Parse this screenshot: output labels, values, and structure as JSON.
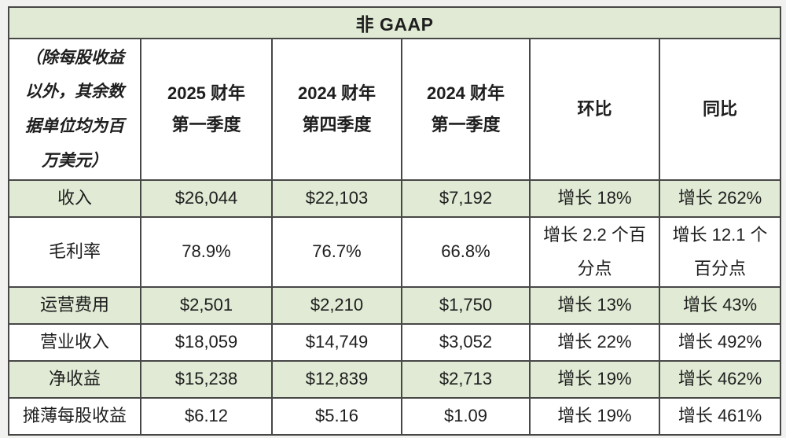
{
  "title": "非 GAAP",
  "note": "（除每股收益以外，其余数据单位均为百万美元）",
  "columns": [
    {
      "line1": "2025 财年",
      "line2": "第一季度"
    },
    {
      "line1": "2024 财年",
      "line2": "第四季度"
    },
    {
      "line1": "2024 财年",
      "line2": "第一季度"
    },
    {
      "label": "环比"
    },
    {
      "label": "同比"
    }
  ],
  "rows": [
    {
      "label": "收入",
      "values": [
        "$26,044",
        "$22,103",
        "$7,192",
        "增长 18%",
        "增长 262%"
      ],
      "shaded": true,
      "tall": false
    },
    {
      "label": "毛利率",
      "values": [
        "78.9%",
        "76.7%",
        "66.8%",
        "增长 2.2 个百分点",
        "增长 12.1 个百分点"
      ],
      "shaded": false,
      "tall": true
    },
    {
      "label": "运营费用",
      "values": [
        "$2,501",
        "$2,210",
        "$1,750",
        "增长 13%",
        "增长 43%"
      ],
      "shaded": true,
      "tall": false
    },
    {
      "label": "营业收入",
      "values": [
        "$18,059",
        "$14,749",
        "$3,052",
        "增长 22%",
        "增长 492%"
      ],
      "shaded": false,
      "tall": false
    },
    {
      "label": "净收益",
      "values": [
        "$15,238",
        "$12,839",
        "$2,713",
        "增长 19%",
        "增长 462%"
      ],
      "shaded": true,
      "tall": false
    },
    {
      "label": "摊薄每股收益",
      "values": [
        "$6.12",
        "$5.16",
        "$1.09",
        "增长 19%",
        "增长 461%"
      ],
      "shaded": false,
      "tall": false
    }
  ],
  "colors": {
    "row_shade": "#e0ead4",
    "grid_border": "#474747",
    "text": "#1e1e1e",
    "page_background": "#f1f1ef"
  }
}
